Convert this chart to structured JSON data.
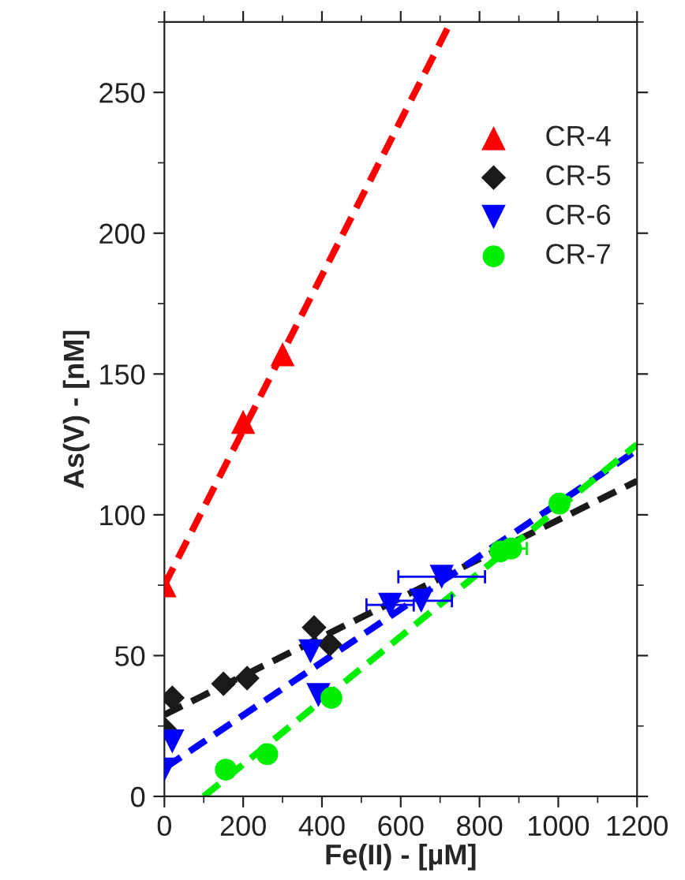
{
  "chart_data": {
    "type": "scatter",
    "xlabel": "Fe(II) - [µM]",
    "ylabel": "As(V) - [nM]",
    "xlim": [
      0,
      1200
    ],
    "ylim": [
      0,
      275
    ],
    "xticks": [
      0,
      200,
      400,
      600,
      800,
      1000,
      1200
    ],
    "yticks": [
      0,
      50,
      100,
      150,
      200,
      250
    ],
    "grid": false,
    "legend": "top right",
    "series": [
      {
        "name": "CR-4",
        "marker": "triangle",
        "color": "#ff0000",
        "x": [
          0,
          200,
          300
        ],
        "values": [
          75,
          133,
          157
        ]
      },
      {
        "name": "CR-5",
        "marker": "diamond",
        "color": "#1a1a1a",
        "x": [
          0,
          20,
          150,
          210,
          380,
          420
        ],
        "values": [
          24,
          35,
          40,
          42,
          60,
          54
        ]
      },
      {
        "name": "CR-6",
        "marker": "triangle_down",
        "color": "#0000ff",
        "x": [
          0,
          20,
          371,
          391,
          573,
          652,
          704
        ],
        "values": [
          9.5,
          19.5,
          51.5,
          36,
          68,
          69.5,
          78
        ],
        "xerrors": [
          null,
          null,
          null,
          null,
          60,
          78,
          110
        ]
      },
      {
        "name": "CR-7",
        "marker": "circle",
        "color": "#00ee00",
        "x": [
          156,
          261,
          424,
          853,
          880,
          1003
        ],
        "values": [
          9.5,
          15,
          35,
          87,
          88,
          104
        ],
        "xerrors": [
          null,
          null,
          null,
          null,
          40,
          null
        ]
      },
      {
        "type": "line",
        "line_style": "dashed",
        "color": "#ff0000",
        "x": [
          0,
          727
        ],
        "values": [
          75,
          275
        ]
      },
      {
        "type": "line",
        "line_style": "dashed",
        "color": "#1a1a1a",
        "x": [
          0,
          1200
        ],
        "values": [
          29,
          112
        ]
      },
      {
        "type": "line",
        "line_style": "dashed",
        "color": "#0000ff",
        "x": [
          0,
          1200
        ],
        "values": [
          10,
          123
        ]
      },
      {
        "type": "line",
        "line_style": "dashed",
        "color": "#00ee00",
        "x": [
          100,
          1200
        ],
        "values": [
          0,
          125
        ]
      }
    ]
  }
}
